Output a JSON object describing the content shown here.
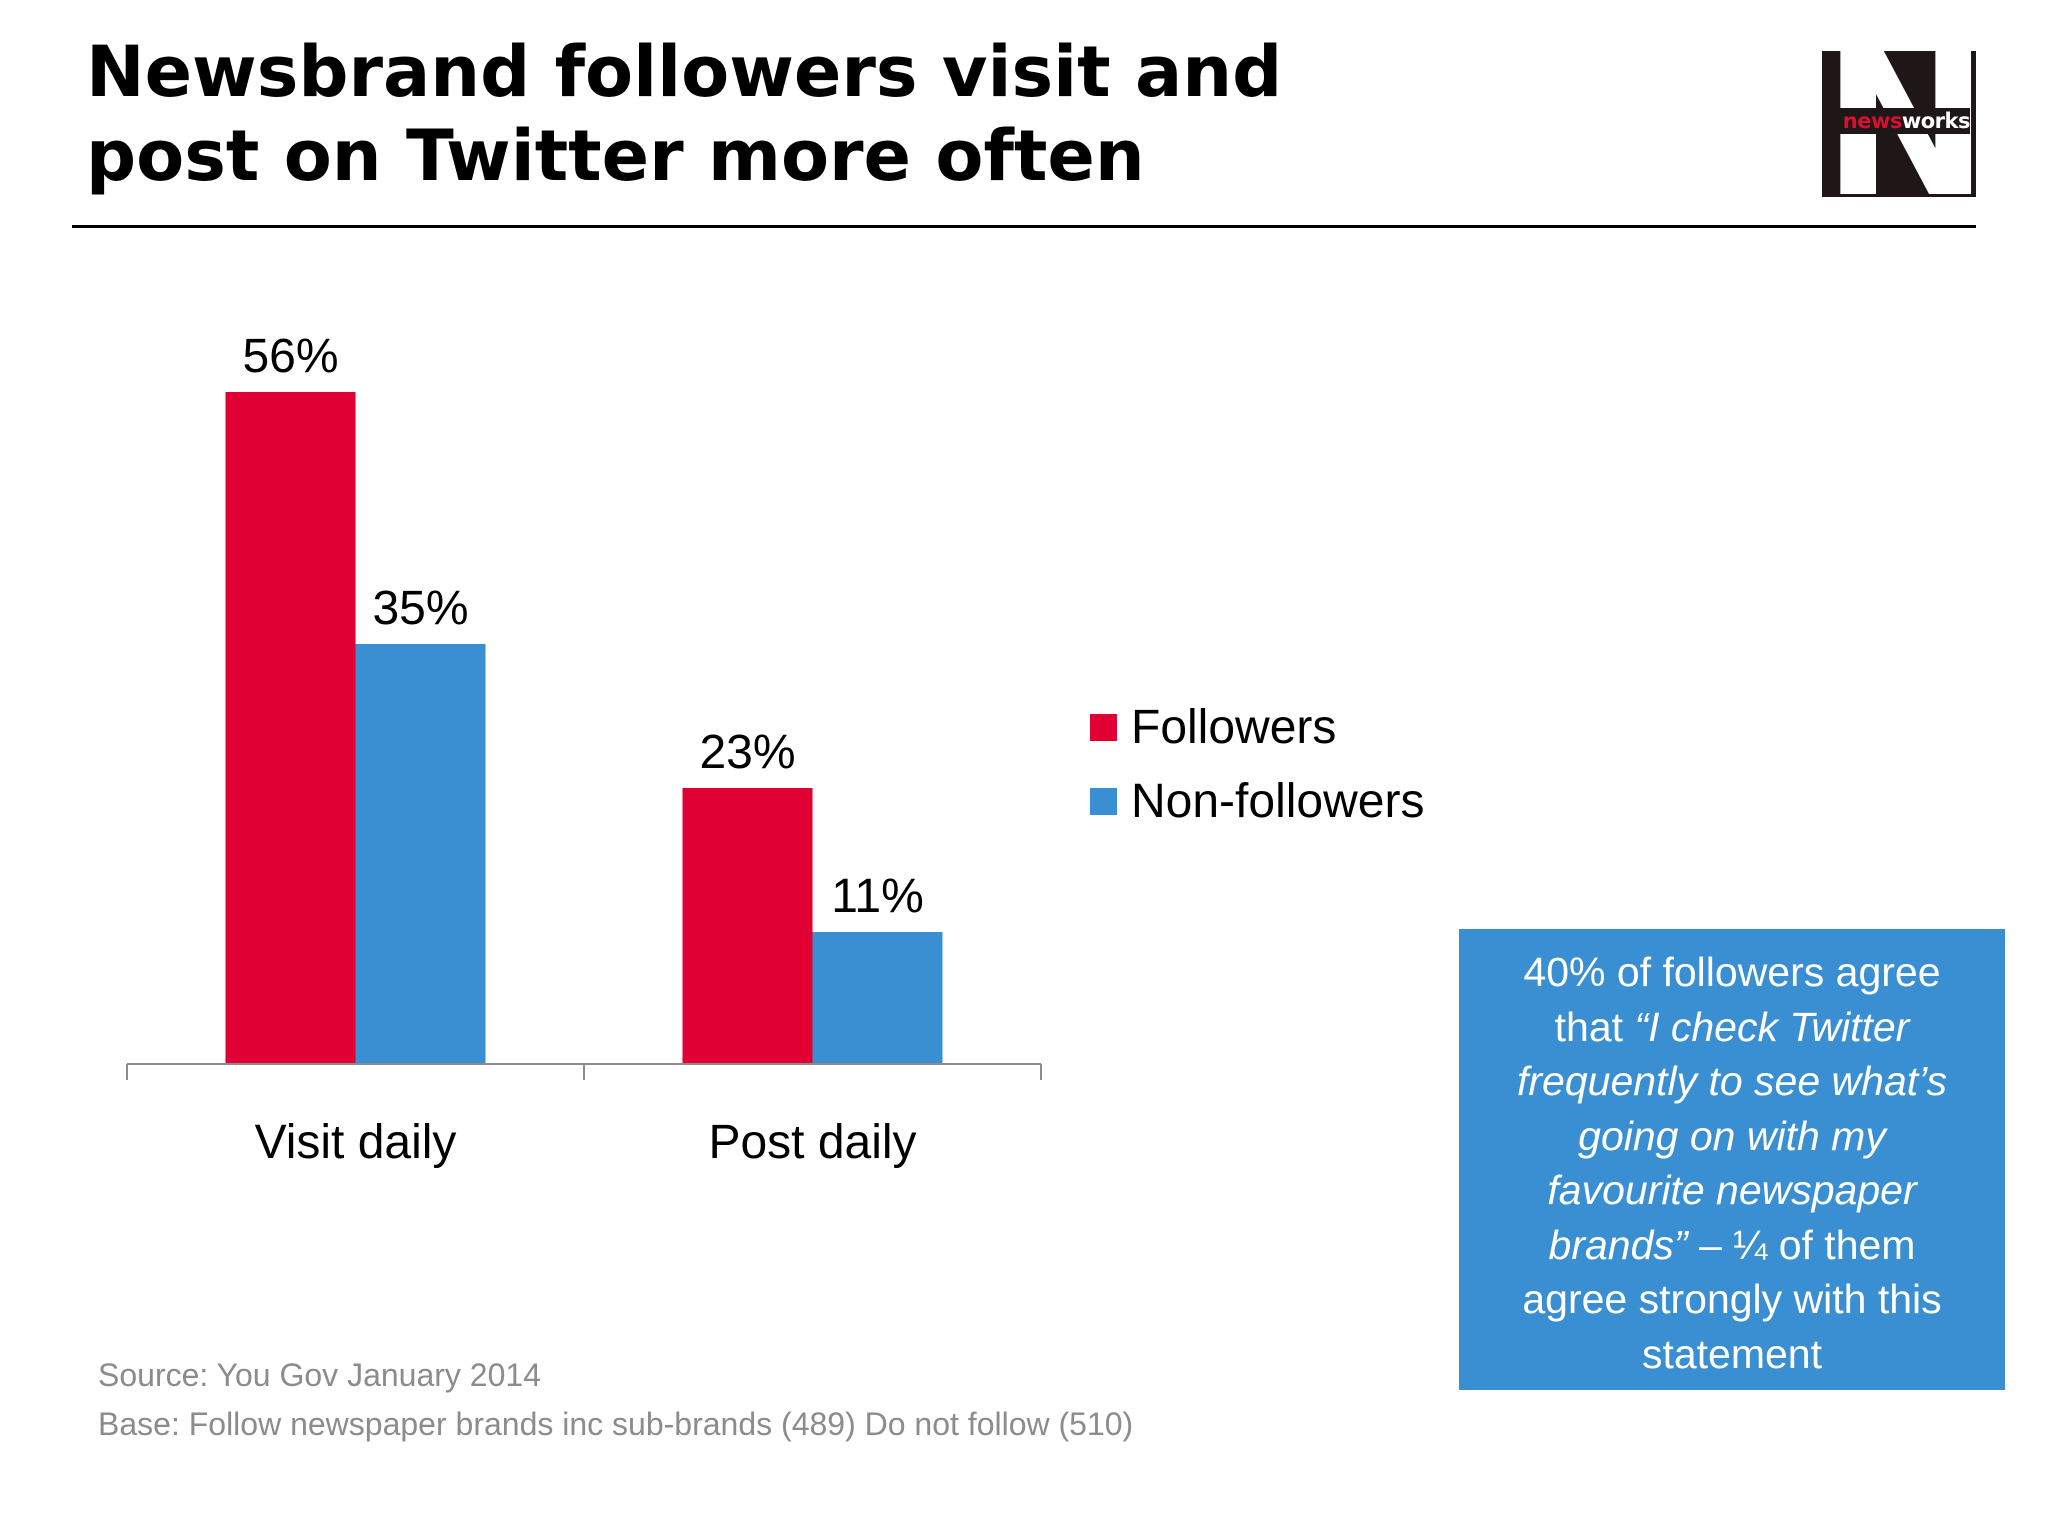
{
  "header": {
    "title_line1": "Newsbrand followers visit and",
    "title_line2": "post on Twitter more often"
  },
  "logo": {
    "big_letter": "N",
    "word_part1": "news",
    "word_part2": "works",
    "bg_color": "#1e1617",
    "accent_color": "#d6112f"
  },
  "chart_data": {
    "type": "bar",
    "categories": [
      "Visit daily",
      "Post daily"
    ],
    "series": [
      {
        "name": "Followers",
        "values": [
          56,
          23
        ],
        "labels": [
          "56%",
          "23%"
        ],
        "color": "#e00034"
      },
      {
        "name": "Non-followers",
        "values": [
          35,
          11
        ],
        "labels": [
          "35%",
          "11%"
        ],
        "color": "#3a8fd3"
      }
    ],
    "ylim": [
      0,
      60
    ],
    "grid": false,
    "legend_position": "right"
  },
  "callout": {
    "line1": "40% of followers agree",
    "line2_normal": "that ",
    "line2_italic": "“I check Twitter",
    "line3_italic": "frequently to see what’s",
    "line4_italic": "going on with my",
    "line5_italic": "favourite newspaper",
    "line6_italic": "brands”",
    "line6_normal": " – ¼ of them",
    "line7": "agree strongly with this",
    "line8": "statement",
    "bg_color": "#3a8fd3"
  },
  "footer": {
    "source": "Source: You Gov January 2014",
    "base": "Base: Follow newspaper brands inc sub-brands (489) Do not follow (510)"
  }
}
